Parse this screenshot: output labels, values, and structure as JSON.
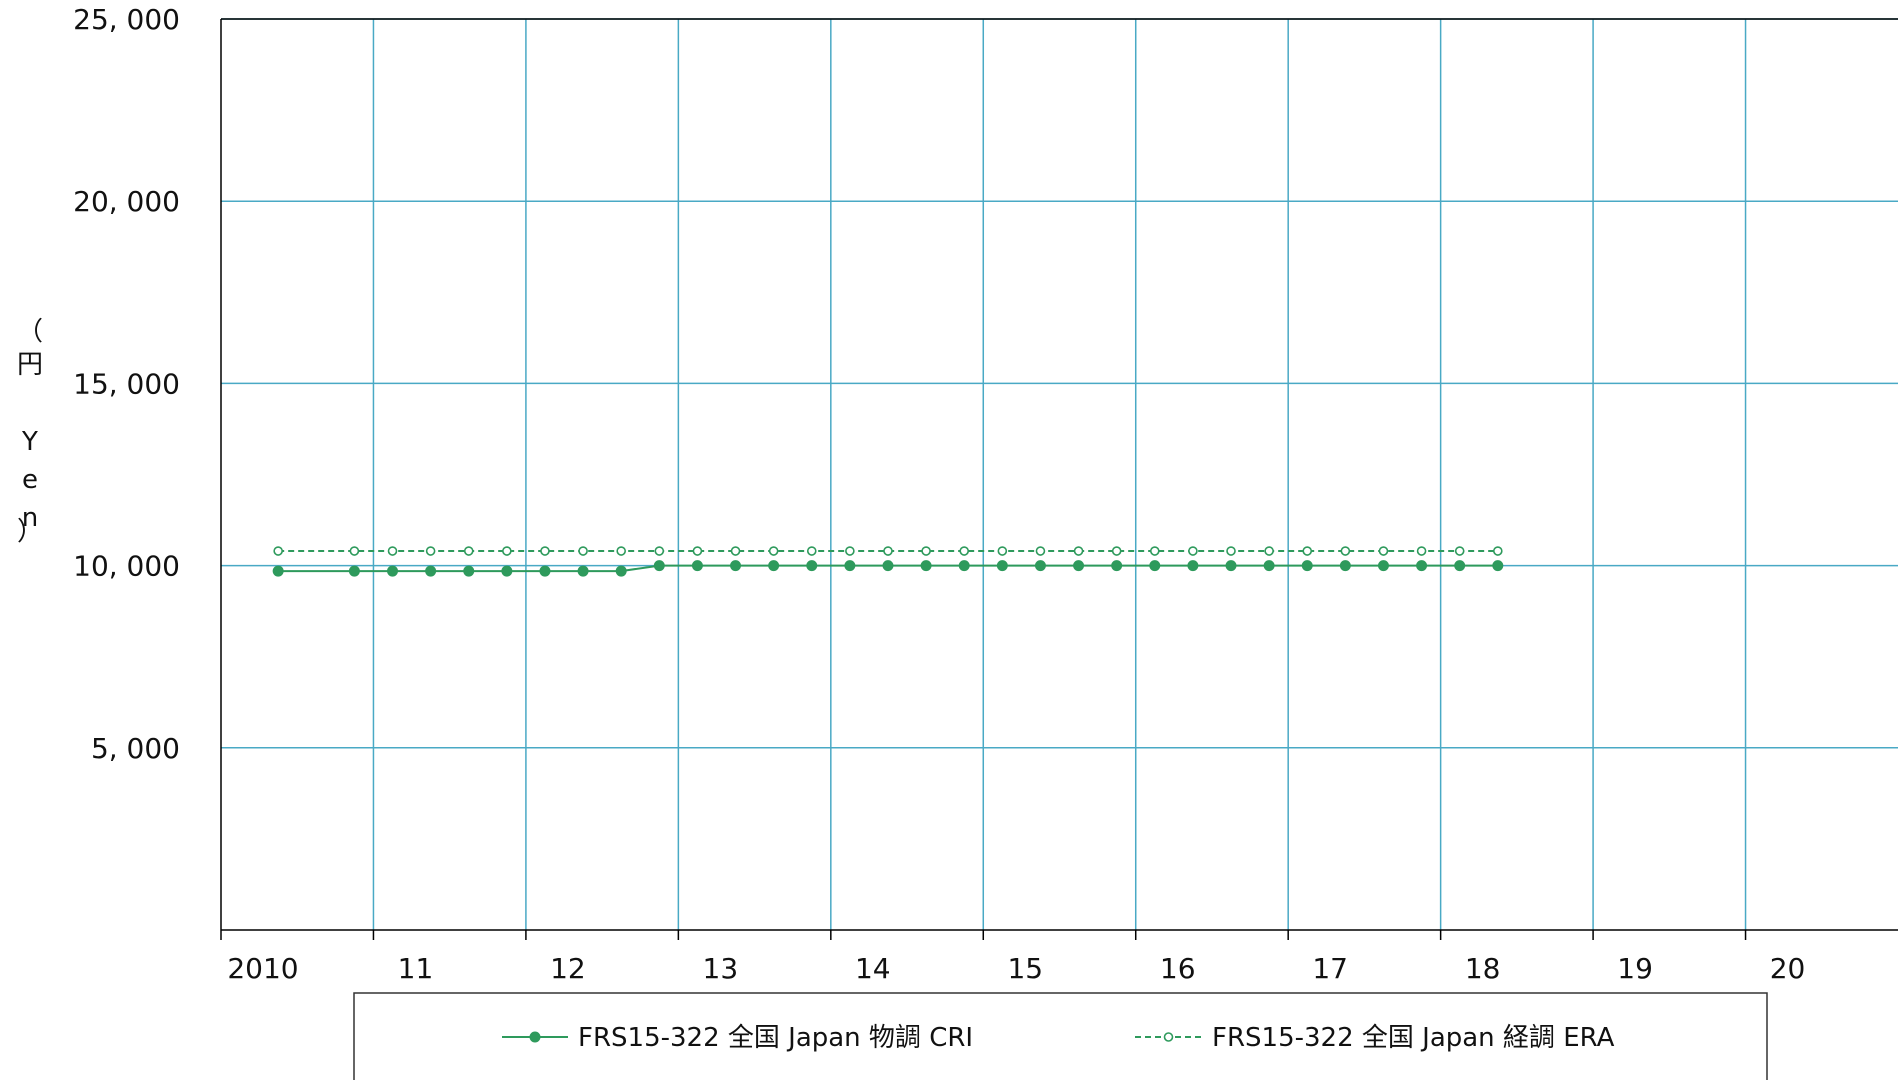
{
  "chart_data": {
    "type": "line",
    "ylabel_chars": [
      "（",
      "円",
      " ",
      "Y",
      "e",
      "n",
      "）"
    ],
    "y_ticks": [
      {
        "value": 25000,
        "label": "25, 000"
      },
      {
        "value": 20000,
        "label": "20, 000"
      },
      {
        "value": 15000,
        "label": "15, 000"
      },
      {
        "value": 10000,
        "label": "10, 000"
      },
      {
        "value": 5000,
        "label": "5, 000"
      }
    ],
    "ylim": [
      0,
      25000
    ],
    "xlim": [
      2010,
      2021
    ],
    "x_ticks": [
      {
        "value": 2010,
        "label": "2010"
      },
      {
        "value": 2011,
        "label": "11"
      },
      {
        "value": 2012,
        "label": "12"
      },
      {
        "value": 2013,
        "label": "13"
      },
      {
        "value": 2014,
        "label": "14"
      },
      {
        "value": 2015,
        "label": "15"
      },
      {
        "value": 2016,
        "label": "16"
      },
      {
        "value": 2017,
        "label": "17"
      },
      {
        "value": 2018,
        "label": "18"
      },
      {
        "value": 2019,
        "label": "19"
      },
      {
        "value": 2020,
        "label": "20"
      }
    ],
    "grid": true,
    "legend_position": "bottom",
    "colors": {
      "series": "#2e9a5c",
      "grid": "#49a9c5",
      "axis": "#000000"
    },
    "series": [
      {
        "name": "FRS15-322 全国 Japan 物調 CRI",
        "style": "solid",
        "marker": "filled-circle",
        "points": [
          [
            2010.375,
            9850
          ],
          [
            2010.875,
            9850
          ],
          [
            2011.125,
            9850
          ],
          [
            2011.375,
            9850
          ],
          [
            2011.625,
            9850
          ],
          [
            2011.875,
            9850
          ],
          [
            2012.125,
            9850
          ],
          [
            2012.375,
            9850
          ],
          [
            2012.625,
            9850
          ],
          [
            2012.875,
            10000
          ],
          [
            2013.125,
            10000
          ],
          [
            2013.375,
            10000
          ],
          [
            2013.625,
            10000
          ],
          [
            2013.875,
            10000
          ],
          [
            2014.125,
            10000
          ],
          [
            2014.375,
            10000
          ],
          [
            2014.625,
            10000
          ],
          [
            2014.875,
            10000
          ],
          [
            2015.125,
            10000
          ],
          [
            2015.375,
            10000
          ],
          [
            2015.625,
            10000
          ],
          [
            2015.875,
            10000
          ],
          [
            2016.125,
            10000
          ],
          [
            2016.375,
            10000
          ],
          [
            2016.625,
            10000
          ],
          [
            2016.875,
            10000
          ],
          [
            2017.125,
            10000
          ],
          [
            2017.375,
            10000
          ],
          [
            2017.625,
            10000
          ],
          [
            2017.875,
            10000
          ],
          [
            2018.125,
            10000
          ],
          [
            2018.375,
            10000
          ]
        ]
      },
      {
        "name": "FRS15-322 全国 Japan 経調 ERA",
        "style": "dashed",
        "marker": "open-circle",
        "points": [
          [
            2010.375,
            10400
          ],
          [
            2010.875,
            10400
          ],
          [
            2011.125,
            10400
          ],
          [
            2011.375,
            10400
          ],
          [
            2011.625,
            10400
          ],
          [
            2011.875,
            10400
          ],
          [
            2012.125,
            10400
          ],
          [
            2012.375,
            10400
          ],
          [
            2012.625,
            10400
          ],
          [
            2012.875,
            10400
          ],
          [
            2013.125,
            10400
          ],
          [
            2013.375,
            10400
          ],
          [
            2013.625,
            10400
          ],
          [
            2013.875,
            10400
          ],
          [
            2014.125,
            10400
          ],
          [
            2014.375,
            10400
          ],
          [
            2014.625,
            10400
          ],
          [
            2014.875,
            10400
          ],
          [
            2015.125,
            10400
          ],
          [
            2015.375,
            10400
          ],
          [
            2015.625,
            10400
          ],
          [
            2015.875,
            10400
          ],
          [
            2016.125,
            10400
          ],
          [
            2016.375,
            10400
          ],
          [
            2016.625,
            10400
          ],
          [
            2016.875,
            10400
          ],
          [
            2017.125,
            10400
          ],
          [
            2017.375,
            10400
          ],
          [
            2017.625,
            10400
          ],
          [
            2017.875,
            10400
          ],
          [
            2018.125,
            10400
          ],
          [
            2018.375,
            10400
          ]
        ]
      }
    ]
  }
}
